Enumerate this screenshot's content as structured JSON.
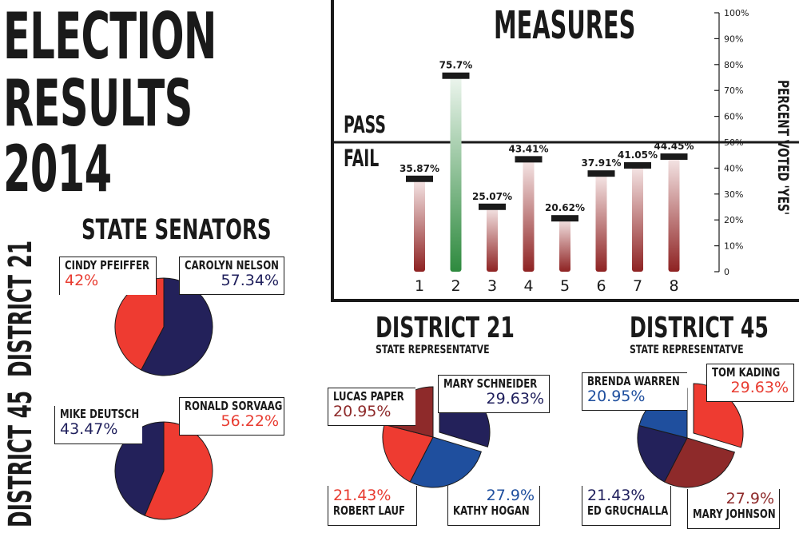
{
  "title_lines": [
    "ELECTION",
    "RESULTS",
    "2014"
  ],
  "colors": {
    "red": "#ee3b31",
    "navy": "#23215a",
    "blue": "#1f4f9e",
    "maroon": "#8e2a2a",
    "green": "#2e8a3e",
    "bar_red": "#8e2222"
  },
  "state_senators": {
    "heading": "STATE SENATORS",
    "district_21": {
      "label": "DISTRICT 21",
      "candidates": [
        {
          "name": "CINDY PFEIFFER",
          "pct": "42%"
        },
        {
          "name": "CAROLYN NELSON",
          "pct": "57.34%"
        }
      ]
    },
    "district_45": {
      "label": "DISTRICT 45",
      "candidates": [
        {
          "name": "MIKE DEUTSCH",
          "pct": "43.47%"
        },
        {
          "name": "RONALD SORVAAG",
          "pct": "56.22%"
        }
      ]
    }
  },
  "measures": {
    "pass_label": "PASS",
    "fail_label": "FAIL"
  },
  "district21_rep": {
    "heading": "DISTRICT 21",
    "subheading": "STATE REPRESENTATVE",
    "candidates": [
      {
        "name": "LUCAS PAPER",
        "pct": "20.95%"
      },
      {
        "name": "MARY SCHNEIDER",
        "pct": "29.63%"
      },
      {
        "name": "ROBERT LAUF",
        "pct": "21.43%"
      },
      {
        "name": "KATHY HOGAN",
        "pct": "27.9%"
      }
    ]
  },
  "district45_rep": {
    "heading": "DISTRICT 45",
    "subheading": "STATE REPRESENTATVE",
    "candidates": [
      {
        "name": "BRENDA WARREN",
        "pct": "20.95%"
      },
      {
        "name": "TOM KADING",
        "pct": "29.63%"
      },
      {
        "name": "ED GRUCHALLA",
        "pct": "21.43%"
      },
      {
        "name": "MARY JOHNSON",
        "pct": "27.9%"
      }
    ]
  },
  "chart_data": [
    {
      "type": "bar",
      "title": "MEASURES",
      "ylabel": "PERCENT VOTED 'YES'",
      "categories": [
        "1",
        "2",
        "3",
        "4",
        "5",
        "6",
        "7",
        "8"
      ],
      "values": [
        35.87,
        75.7,
        25.07,
        43.41,
        20.62,
        37.91,
        41.05,
        44.45
      ],
      "value_labels": [
        "35.87%",
        "75.7%",
        "25.07%",
        "43.41%",
        "20.62%",
        "37.91%",
        "41.05%",
        "44.45%"
      ],
      "ylim": [
        0,
        100
      ],
      "yticks": [
        0,
        10,
        20,
        30,
        40,
        50,
        60,
        70,
        80,
        90,
        100
      ],
      "ytick_labels": [
        "0",
        "10%",
        "20%",
        "30%",
        "40%",
        "50%",
        "60%",
        "70%",
        "80%",
        "90%",
        "100%"
      ],
      "threshold": 50,
      "y_axis_side": "right"
    },
    {
      "type": "pie",
      "title": "STATE SENATORS - DISTRICT 21",
      "labels": [
        "CAROLYN NELSON",
        "CINDY PFEIFFER"
      ],
      "values": [
        57.34,
        42
      ]
    },
    {
      "type": "pie",
      "title": "STATE SENATORS - DISTRICT 45",
      "labels": [
        "RONALD SORVAAG",
        "MIKE DEUTSCH"
      ],
      "values": [
        56.22,
        43.47
      ]
    },
    {
      "type": "pie",
      "title": "DISTRICT 21 STATE REPRESENTATVE",
      "labels": [
        "MARY SCHNEIDER",
        "KATHY HOGAN",
        "ROBERT LAUF",
        "LUCAS PAPER"
      ],
      "values": [
        29.63,
        27.9,
        21.43,
        20.95
      ]
    },
    {
      "type": "pie",
      "title": "DISTRICT 45 STATE REPRESENTATVE",
      "labels": [
        "TOM KADING",
        "MARY JOHNSON",
        "ED GRUCHALLA",
        "BRENDA WARREN"
      ],
      "values": [
        29.63,
        27.9,
        21.43,
        20.95
      ]
    }
  ]
}
